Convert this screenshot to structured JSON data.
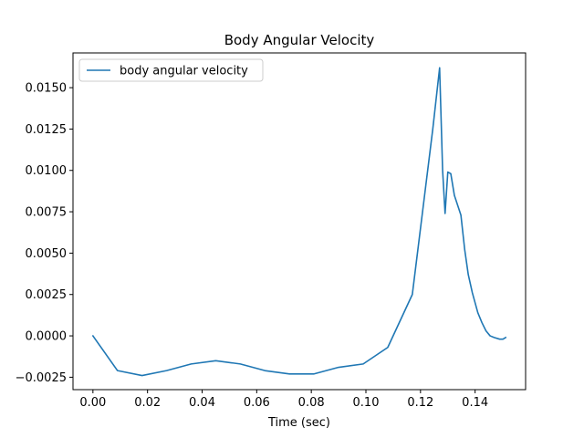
{
  "chart_data": {
    "type": "line",
    "title": "Body Angular Velocity",
    "xlabel": "Time (sec)",
    "ylabel": "",
    "xlim": [
      -0.0073,
      0.1585
    ],
    "ylim": [
      -0.00325,
      0.0171
    ],
    "x_ticks": [
      0.0,
      0.02,
      0.04,
      0.06,
      0.08,
      0.1,
      0.12,
      0.14
    ],
    "x_tick_labels": [
      "0.00",
      "0.02",
      "0.04",
      "0.06",
      "0.08",
      "0.10",
      "0.12",
      "0.14"
    ],
    "y_ticks": [
      -0.0025,
      0.0,
      0.0025,
      0.005,
      0.0075,
      0.01,
      0.0125,
      0.015
    ],
    "y_tick_labels": [
      "−0.0025",
      "0.0000",
      "0.0025",
      "0.0050",
      "0.0075",
      "0.0100",
      "0.0125",
      "0.0150"
    ],
    "grid": false,
    "legend_position": "top-left",
    "series": [
      {
        "name": "body angular velocity",
        "color": "#1f77b4",
        "x": [
          0.0,
          0.009,
          0.018,
          0.027,
          0.036,
          0.045,
          0.054,
          0.063,
          0.072,
          0.081,
          0.09,
          0.099,
          0.108,
          0.117,
          0.1215,
          0.1245,
          0.127,
          0.1281,
          0.129,
          0.13,
          0.1311,
          0.1324,
          0.1348,
          0.1362,
          0.1375,
          0.139,
          0.141,
          0.1425,
          0.144,
          0.1455,
          0.147,
          0.149,
          0.1502,
          0.1512
        ],
        "y": [
          0.0,
          -0.0021,
          -0.0024,
          -0.0021,
          -0.0017,
          -0.0015,
          -0.0017,
          -0.0021,
          -0.0023,
          -0.0023,
          -0.0019,
          -0.0017,
          -0.0007,
          0.0025,
          0.0085,
          0.0125,
          0.0162,
          0.01,
          0.0074,
          0.0099,
          0.0098,
          0.0085,
          0.0073,
          0.0052,
          0.0037,
          0.0026,
          0.0014,
          0.0008,
          0.0003,
          0.0,
          -0.0001,
          -0.0002,
          -0.0002,
          -0.0001
        ]
      }
    ]
  }
}
